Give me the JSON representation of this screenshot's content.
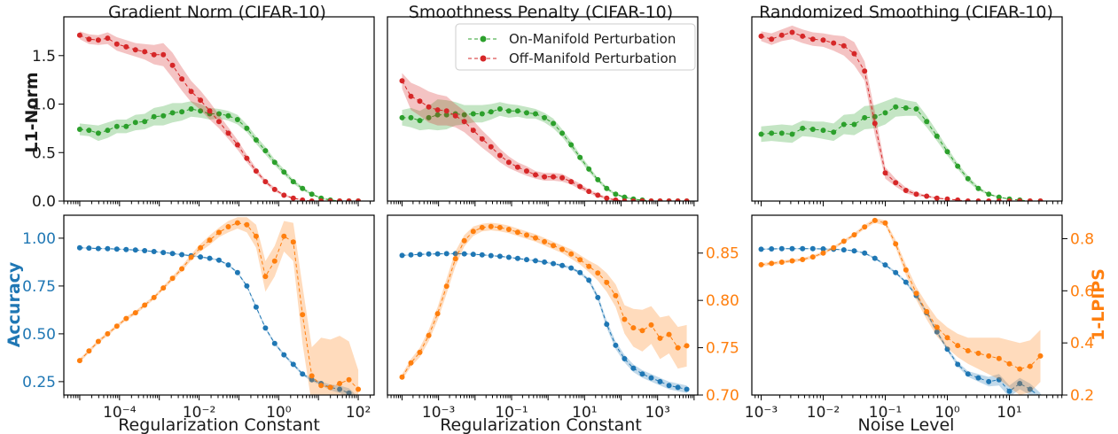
{
  "colors": {
    "on_manifold": "#2ca02c",
    "off_manifold": "#d62728",
    "accuracy": "#1f77b4",
    "lpips": "#ff7f0e",
    "frame": "#000000"
  },
  "row_labels": {
    "top": "L1-Norm",
    "bottom_left": "Accuracy",
    "bottom_right": "1-LPIPS"
  },
  "chart_data": [
    {
      "type": "line",
      "title": "Gradient Norm (CIFAR-10)",
      "xlabel": "",
      "ylabel": "L1-Norm",
      "xscale": "log",
      "xlim_exp": [
        -5.4,
        2.4
      ],
      "ylim": [
        0,
        1.9
      ],
      "xticks_exp": [
        -4,
        -2,
        0,
        2
      ],
      "yticks": [
        "0.0",
        "0.5",
        "1.0",
        "1.5"
      ],
      "series": [
        {
          "name": "On-Manifold Perturbation",
          "x_exp_start": -5.0,
          "x_exp_end": 2.0,
          "values": [
            0.74,
            0.73,
            0.7,
            0.73,
            0.77,
            0.77,
            0.81,
            0.82,
            0.87,
            0.88,
            0.91,
            0.92,
            0.95,
            0.93,
            0.9,
            0.9,
            0.88,
            0.84,
            0.75,
            0.63,
            0.52,
            0.4,
            0.3,
            0.2,
            0.13,
            0.07,
            0.03,
            0.01,
            0.0,
            0.0,
            0.0
          ],
          "band": [
            0.06,
            0.06,
            0.08,
            0.08,
            0.07,
            0.07,
            0.08,
            0.08,
            0.09,
            0.1,
            0.1,
            0.09,
            0.08,
            0.07,
            0.06,
            0.05,
            0.05,
            0.05,
            0.04,
            0.04,
            0.04,
            0.03,
            0.03,
            0.02,
            0.02,
            0.01,
            0.01,
            0.01,
            0,
            0,
            0
          ]
        },
        {
          "name": "Off-Manifold Perturbation",
          "x_exp_start": -5.0,
          "x_exp_end": 2.0,
          "values": [
            1.71,
            1.67,
            1.66,
            1.68,
            1.62,
            1.59,
            1.56,
            1.54,
            1.51,
            1.51,
            1.4,
            1.26,
            1.13,
            1.04,
            0.93,
            0.82,
            0.7,
            0.58,
            0.44,
            0.31,
            0.2,
            0.12,
            0.06,
            0.03,
            0.01,
            0.0,
            0.0,
            0.0,
            0.0,
            0.0,
            0.0
          ],
          "band": [
            0.04,
            0.05,
            0.05,
            0.06,
            0.07,
            0.07,
            0.07,
            0.08,
            0.1,
            0.12,
            0.13,
            0.12,
            0.11,
            0.1,
            0.09,
            0.07,
            0.06,
            0.05,
            0.04,
            0.03,
            0.02,
            0.02,
            0.01,
            0.01,
            0,
            0,
            0,
            0,
            0,
            0,
            0
          ]
        }
      ]
    },
    {
      "type": "line",
      "title": "Smoothness Penalty (CIFAR-10)",
      "xlabel": "",
      "ylabel": "",
      "xscale": "log",
      "xlim_exp": [
        -4.4,
        4.1
      ],
      "ylim": [
        0,
        1.9
      ],
      "xticks_exp": [
        -3,
        -1,
        1,
        3
      ],
      "yticks": [],
      "legend": {
        "position": "top-right",
        "entries": [
          "On-Manifold Perturbation",
          "Off-Manifold Perturbation"
        ]
      },
      "series": [
        {
          "name": "On-Manifold Perturbation",
          "x_exp_start": -4.0,
          "x_exp_end": 3.8,
          "values": [
            0.86,
            0.86,
            0.83,
            0.86,
            0.89,
            0.89,
            0.9,
            0.89,
            0.9,
            0.9,
            0.92,
            0.95,
            0.93,
            0.93,
            0.91,
            0.9,
            0.86,
            0.8,
            0.7,
            0.58,
            0.45,
            0.33,
            0.22,
            0.13,
            0.07,
            0.04,
            0.02,
            0.01,
            0.0,
            0.0,
            0.0,
            0.0,
            0.0
          ],
          "band": [
            0.08,
            0.1,
            0.1,
            0.12,
            0.16,
            0.15,
            0.12,
            0.1,
            0.09,
            0.09,
            0.08,
            0.07,
            0.07,
            0.06,
            0.06,
            0.05,
            0.05,
            0.05,
            0.04,
            0.04,
            0.03,
            0.03,
            0.02,
            0.02,
            0.01,
            0.01,
            0.01,
            0,
            0,
            0,
            0,
            0,
            0
          ]
        },
        {
          "name": "Off-Manifold Perturbation",
          "x_exp_start": -4.0,
          "x_exp_end": 3.8,
          "values": [
            1.24,
            1.08,
            1.03,
            0.97,
            0.94,
            0.93,
            0.88,
            0.82,
            0.73,
            0.64,
            0.56,
            0.47,
            0.4,
            0.35,
            0.31,
            0.27,
            0.25,
            0.25,
            0.24,
            0.2,
            0.15,
            0.1,
            0.06,
            0.03,
            0.01,
            0.0,
            0.0,
            0.0,
            0.0,
            0.0,
            0.0,
            0.0,
            0.0
          ],
          "band": [
            0.08,
            0.14,
            0.15,
            0.16,
            0.16,
            0.15,
            0.12,
            0.11,
            0.1,
            0.09,
            0.08,
            0.07,
            0.06,
            0.05,
            0.05,
            0.04,
            0.04,
            0.04,
            0.04,
            0.03,
            0.03,
            0.02,
            0.02,
            0.01,
            0.01,
            0,
            0,
            0,
            0,
            0,
            0,
            0,
            0
          ]
        }
      ]
    },
    {
      "type": "line",
      "title": "Randomized Smoothing (CIFAR-10)",
      "xlabel": "",
      "ylabel": "",
      "xscale": "log",
      "xlim_exp": [
        -3.15,
        1.85
      ],
      "ylim": [
        0,
        1.9
      ],
      "xticks_exp": [
        -3,
        -2,
        -1,
        0,
        1
      ],
      "yticks": [],
      "series": [
        {
          "name": "On-Manifold Perturbation",
          "x_exp_start": -3.0,
          "x_exp_end": 1.5,
          "values": [
            0.69,
            0.7,
            0.7,
            0.69,
            0.75,
            0.74,
            0.73,
            0.71,
            0.79,
            0.79,
            0.86,
            0.87,
            0.91,
            0.97,
            0.96,
            0.95,
            0.82,
            0.67,
            0.51,
            0.36,
            0.23,
            0.13,
            0.07,
            0.04,
            0.02,
            0.01,
            0.0,
            0.0
          ],
          "band": [
            0.08,
            0.08,
            0.09,
            0.09,
            0.08,
            0.08,
            0.09,
            0.09,
            0.1,
            0.11,
            0.12,
            0.12,
            0.12,
            0.1,
            0.08,
            0.07,
            0.06,
            0.05,
            0.04,
            0.03,
            0.03,
            0.02,
            0.01,
            0.01,
            0,
            0,
            0,
            0
          ]
        },
        {
          "name": "Off-Manifold Perturbation",
          "x_exp_start": -3.0,
          "x_exp_end": 1.5,
          "values": [
            1.7,
            1.67,
            1.71,
            1.74,
            1.7,
            1.67,
            1.66,
            1.63,
            1.6,
            1.52,
            1.34,
            0.8,
            0.29,
            0.19,
            0.11,
            0.07,
            0.05,
            0.03,
            0.02,
            0.01,
            0.0,
            0.0,
            0.0,
            0.0,
            0.0,
            0.0,
            0.0,
            0.0
          ],
          "band": [
            0.05,
            0.06,
            0.06,
            0.07,
            0.07,
            0.07,
            0.07,
            0.08,
            0.1,
            0.12,
            0.1,
            0.12,
            0.06,
            0.04,
            0.03,
            0.02,
            0.01,
            0.01,
            0,
            0,
            0,
            0,
            0,
            0,
            0,
            0,
            0,
            0
          ]
        }
      ]
    },
    {
      "type": "line",
      "title": "",
      "xlabel": "Regularization Constant",
      "ylabel": "Accuracy",
      "ylabel_right": "",
      "xscale": "log",
      "xlim_exp": [
        -5.4,
        2.4
      ],
      "xticks_exp": [
        -4,
        -2,
        0,
        2
      ],
      "ylim": [
        0.18,
        1.12
      ],
      "yticks": [
        "0.25",
        "0.50",
        "0.75",
        "1.00"
      ],
      "ylim_right": [
        0.18,
        1.12
      ],
      "yticks_right": [],
      "series": [
        {
          "name": "Accuracy",
          "axis": "left",
          "x_exp_start": -5.0,
          "x_exp_end": 2.0,
          "values": [
            0.95,
            0.948,
            0.946,
            0.945,
            0.943,
            0.941,
            0.938,
            0.935,
            0.93,
            0.925,
            0.92,
            0.914,
            0.908,
            0.902,
            0.895,
            0.885,
            0.86,
            0.82,
            0.75,
            0.64,
            0.53,
            0.45,
            0.39,
            0.34,
            0.29,
            0.26,
            0.24,
            0.22,
            0.21,
            0.19,
            0.15
          ],
          "band": [
            0.003,
            0.003,
            0.003,
            0.003,
            0.003,
            0.003,
            0.003,
            0.003,
            0.003,
            0.003,
            0.004,
            0.004,
            0.004,
            0.004,
            0.004,
            0.005,
            0.005,
            0.006,
            0.007,
            0.008,
            0.008,
            0.008,
            0.008,
            0.008,
            0.008,
            0.008,
            0.01,
            0.015,
            0.02,
            0.025,
            0.02
          ]
        },
        {
          "name": "1-LPIPS",
          "axis": "right",
          "x_exp_start": -5.0,
          "x_exp_end": 2.0,
          "values": [
            0.36,
            0.41,
            0.46,
            0.5,
            0.54,
            0.58,
            0.61,
            0.65,
            0.69,
            0.74,
            0.79,
            0.84,
            0.9,
            0.95,
            0.99,
            1.03,
            1.06,
            1.08,
            1.07,
            1.01,
            0.8,
            0.88,
            1.01,
            0.98,
            0.6,
            0.28,
            0.23,
            0.22,
            0.24,
            0.26,
            0.21
          ],
          "band": [
            0.01,
            0.01,
            0.01,
            0.01,
            0.01,
            0.01,
            0.01,
            0.01,
            0.01,
            0.01,
            0.012,
            0.014,
            0.016,
            0.02,
            0.025,
            0.025,
            0.03,
            0.03,
            0.04,
            0.06,
            0.08,
            0.08,
            0.08,
            0.1,
            0.15,
            0.15,
            0.25,
            0.25,
            0.25,
            0.2,
            0.1
          ]
        }
      ]
    },
    {
      "type": "line",
      "title": "",
      "xlabel": "Regularization Constant",
      "ylabel": "",
      "ylabel_right": "",
      "xscale": "log",
      "xlim_exp": [
        -4.4,
        4.1
      ],
      "xticks_exp": [
        -3,
        -1,
        1,
        3
      ],
      "ylim": [
        0.18,
        1.12
      ],
      "yticks": [],
      "ylim_right": [
        0.7,
        0.89
      ],
      "yticks_right": [
        "0.70",
        "0.75",
        "0.80",
        "0.85"
      ],
      "series": [
        {
          "name": "Accuracy",
          "axis": "left",
          "x_exp_start": -4.0,
          "x_exp_end": 3.8,
          "values": [
            0.91,
            0.913,
            0.915,
            0.917,
            0.918,
            0.919,
            0.919,
            0.918,
            0.916,
            0.913,
            0.909,
            0.905,
            0.9,
            0.894,
            0.888,
            0.882,
            0.875,
            0.867,
            0.857,
            0.844,
            0.82,
            0.78,
            0.69,
            0.55,
            0.44,
            0.37,
            0.32,
            0.29,
            0.27,
            0.25,
            0.23,
            0.22,
            0.21
          ],
          "band": [
            0.003,
            0.003,
            0.003,
            0.003,
            0.003,
            0.003,
            0.003,
            0.003,
            0.003,
            0.003,
            0.003,
            0.003,
            0.004,
            0.004,
            0.004,
            0.004,
            0.005,
            0.005,
            0.006,
            0.007,
            0.008,
            0.01,
            0.015,
            0.02,
            0.02,
            0.02,
            0.02,
            0.02,
            0.02,
            0.02,
            0.02,
            0.02,
            0.02
          ]
        },
        {
          "name": "1-LPIPS",
          "axis": "right",
          "x_exp_start": -4.0,
          "x_exp_end": 3.8,
          "values": [
            0.719,
            0.734,
            0.745,
            0.763,
            0.786,
            0.815,
            0.844,
            0.863,
            0.873,
            0.877,
            0.878,
            0.877,
            0.875,
            0.872,
            0.869,
            0.866,
            0.862,
            0.858,
            0.854,
            0.849,
            0.843,
            0.836,
            0.829,
            0.819,
            0.805,
            0.78,
            0.771,
            0.768,
            0.774,
            0.76,
            0.764,
            0.75,
            0.752
          ],
          "band": [
            0.003,
            0.004,
            0.005,
            0.006,
            0.007,
            0.008,
            0.008,
            0.006,
            0.005,
            0.004,
            0.004,
            0.004,
            0.004,
            0.004,
            0.004,
            0.004,
            0.004,
            0.004,
            0.004,
            0.005,
            0.005,
            0.006,
            0.008,
            0.01,
            0.012,
            0.015,
            0.02,
            0.022,
            0.02,
            0.022,
            0.02,
            0.022,
            0.022
          ]
        }
      ]
    },
    {
      "type": "line",
      "title": "",
      "xlabel": "Noise Level",
      "ylabel": "",
      "ylabel_right": "1-LPIPS",
      "xscale": "log",
      "xlim_exp": [
        -3.15,
        1.85
      ],
      "xticks_exp": [
        -3,
        -2,
        -1,
        0,
        1
      ],
      "ylim": [
        0.18,
        1.12
      ],
      "yticks": [],
      "ylim_right": [
        0.2,
        0.89
      ],
      "yticks_right": [
        "0.2",
        "0.4",
        "0.6",
        "0.8"
      ],
      "series": [
        {
          "name": "Accuracy",
          "axis": "left",
          "x_exp_start": -3.0,
          "x_exp_end": 1.5,
          "values": [
            0.942,
            0.944,
            0.945,
            0.945,
            0.945,
            0.945,
            0.944,
            0.942,
            0.939,
            0.934,
            0.922,
            0.895,
            0.86,
            0.82,
            0.77,
            0.7,
            0.61,
            0.51,
            0.42,
            0.34,
            0.29,
            0.27,
            0.25,
            0.26,
            0.2,
            0.24,
            0.21,
            0.17
          ],
          "band": [
            0.003,
            0.003,
            0.003,
            0.003,
            0.003,
            0.003,
            0.003,
            0.003,
            0.003,
            0.003,
            0.004,
            0.005,
            0.006,
            0.007,
            0.008,
            0.01,
            0.01,
            0.01,
            0.012,
            0.012,
            0.015,
            0.02,
            0.025,
            0.03,
            0.03,
            0.03,
            0.03,
            0.02
          ]
        },
        {
          "name": "1-LPIPS",
          "axis": "right",
          "x_exp_start": -3.0,
          "x_exp_end": 1.5,
          "values": [
            0.7,
            0.705,
            0.71,
            0.715,
            0.72,
            0.73,
            0.745,
            0.765,
            0.79,
            0.815,
            0.845,
            0.87,
            0.86,
            0.78,
            0.68,
            0.59,
            0.52,
            0.46,
            0.42,
            0.39,
            0.37,
            0.36,
            0.35,
            0.34,
            0.32,
            0.3,
            0.31,
            0.35
          ],
          "band": [
            0.006,
            0.006,
            0.006,
            0.006,
            0.006,
            0.006,
            0.006,
            0.006,
            0.006,
            0.007,
            0.008,
            0.009,
            0.01,
            0.015,
            0.02,
            0.025,
            0.03,
            0.035,
            0.04,
            0.045,
            0.05,
            0.06,
            0.07,
            0.08,
            0.09,
            0.1,
            0.1,
            0.1
          ]
        }
      ]
    }
  ]
}
